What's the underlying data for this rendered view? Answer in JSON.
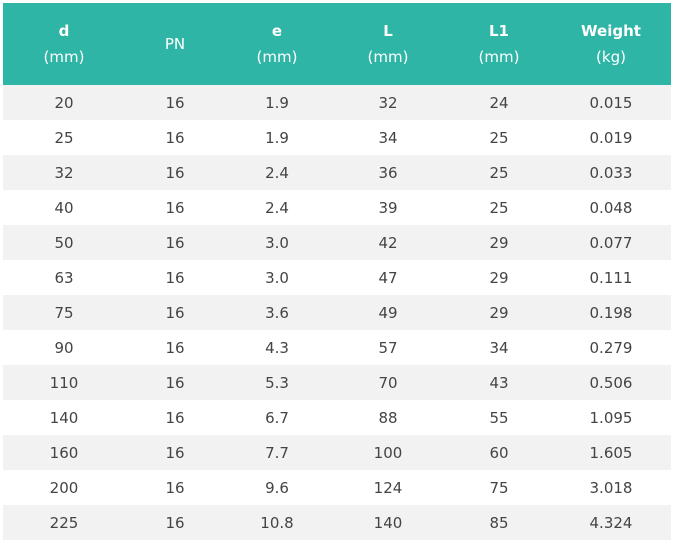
{
  "table": {
    "columns": [
      {
        "name": "d",
        "unit": "(mm)"
      },
      {
        "name": "PN",
        "unit": ""
      },
      {
        "name": "e",
        "unit": "(mm)"
      },
      {
        "name": "L",
        "unit": "(mm)"
      },
      {
        "name": "L1",
        "unit": "(mm)"
      },
      {
        "name": "Weight",
        "unit": "(kg)"
      }
    ],
    "rows": [
      [
        "20",
        "16",
        "1.9",
        "32",
        "24",
        "0.015"
      ],
      [
        "25",
        "16",
        "1.9",
        "34",
        "25",
        "0.019"
      ],
      [
        "32",
        "16",
        "2.4",
        "36",
        "25",
        "0.033"
      ],
      [
        "40",
        "16",
        "2.4",
        "39",
        "25",
        "0.048"
      ],
      [
        "50",
        "16",
        "3.0",
        "42",
        "29",
        "0.077"
      ],
      [
        "63",
        "16",
        "3.0",
        "47",
        "29",
        "0.111"
      ],
      [
        "75",
        "16",
        "3.6",
        "49",
        "29",
        "0.198"
      ],
      [
        "90",
        "16",
        "4.3",
        "57",
        "34",
        "0.279"
      ],
      [
        "110",
        "16",
        "5.3",
        "70",
        "43",
        "0.506"
      ],
      [
        "140",
        "16",
        "6.7",
        "88",
        "55",
        "1.095"
      ],
      [
        "160",
        "16",
        "7.7",
        "100",
        "60",
        "1.605"
      ],
      [
        "200",
        "16",
        "9.6",
        "124",
        "75",
        "3.018"
      ],
      [
        "225",
        "16",
        "10.8",
        "140",
        "85",
        "4.324"
      ]
    ]
  },
  "colors": {
    "header_bg": "#2fb5a6",
    "header_text": "#ffffff",
    "stripe": "#f2f2f2",
    "cell_text": "#444444"
  }
}
